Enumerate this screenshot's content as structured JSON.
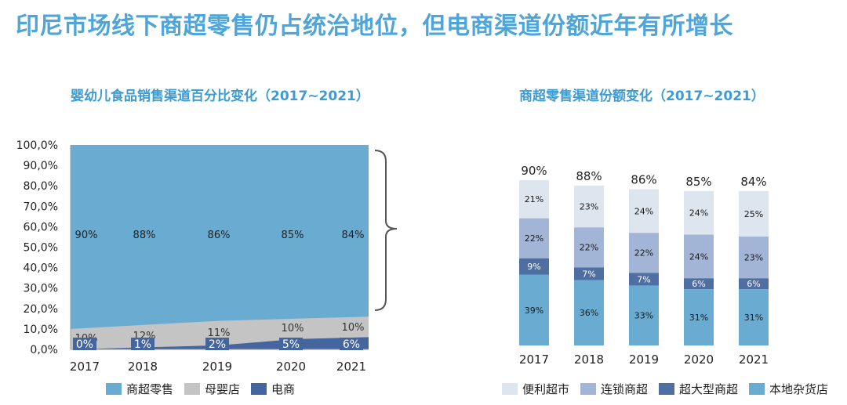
{
  "page_title": "印尼市场线下商超零售仍占统治地位，但电商渠道份额近年有所增长",
  "colors": {
    "title": "#4ea5d9",
    "retail": "#6aabd2",
    "mom_baby": "#c4c4c4",
    "ecommerce": "#44659e",
    "convenience": "#dde5ef",
    "chain": "#a3b5d6",
    "hyper": "#4f6fa3",
    "local": "#6aabd2"
  },
  "chart_data": [
    {
      "type": "area",
      "title": "婴幼儿食品销售渠道百分比变化（2017~2021）",
      "categories": [
        "2017",
        "2018",
        "2019",
        "2020",
        "2021"
      ],
      "series": [
        {
          "name": "商超零售",
          "values": [
            90,
            88,
            86,
            85,
            84
          ],
          "labels": [
            "90%",
            "88%",
            "86%",
            "85%",
            "84%"
          ]
        },
        {
          "name": "母婴店",
          "values": [
            10,
            12,
            11,
            10,
            10
          ],
          "labels": [
            "10%",
            "12%",
            "11%",
            "10%",
            "10%"
          ]
        },
        {
          "name": "电商",
          "values": [
            0,
            1,
            2,
            5,
            6
          ],
          "labels": [
            "0%",
            "1%",
            "2%",
            "5%",
            "6%"
          ]
        }
      ],
      "yticks": [
        "100,0%",
        "90,0%",
        "80,0%",
        "70,0%",
        "60,0%",
        "50,0%",
        "40,0%",
        "30,0%",
        "20,0%",
        "10,0%",
        "0,0%"
      ],
      "ylim": [
        0,
        100
      ],
      "stacked": true,
      "legend_position": "bottom"
    },
    {
      "type": "bar",
      "title": "商超零售渠道份额变化（2017~2021）",
      "categories": [
        "2017",
        "2018",
        "2019",
        "2020",
        "2021"
      ],
      "totals": [
        "90%",
        "88%",
        "86%",
        "85%",
        "84%"
      ],
      "total_values": [
        90,
        88,
        86,
        85,
        84
      ],
      "series": [
        {
          "name": "本地杂货店",
          "values": [
            39,
            36,
            33,
            31,
            31
          ],
          "labels": [
            "39%",
            "36%",
            "33%",
            "31%",
            "31%"
          ]
        },
        {
          "name": "超大型商超",
          "values": [
            9,
            7,
            7,
            6,
            6
          ],
          "labels": [
            "9%",
            "7%",
            "7%",
            "6%",
            "6%"
          ]
        },
        {
          "name": "连锁商超",
          "values": [
            22,
            22,
            22,
            24,
            23
          ],
          "labels": [
            "22%",
            "22%",
            "22%",
            "24%",
            "23%"
          ]
        },
        {
          "name": "便利超市",
          "values": [
            21,
            23,
            24,
            24,
            25
          ],
          "labels": [
            "21%",
            "23%",
            "24%",
            "24%",
            "25%"
          ]
        }
      ],
      "legend_order": [
        "便利超市",
        "连锁商超",
        "超大型商超",
        "本地杂货店"
      ],
      "stacked": true,
      "legend_position": "bottom"
    }
  ]
}
